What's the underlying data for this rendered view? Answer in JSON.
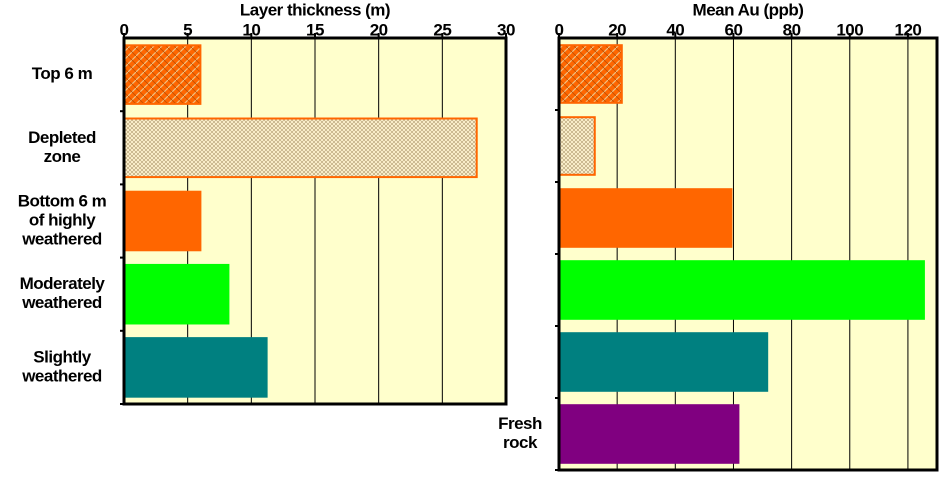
{
  "chart_data": [
    {
      "type": "barh",
      "title": "Layer thickness (m)",
      "categories": [
        [
          "Top 6 m"
        ],
        [
          "Depleted",
          "zone"
        ],
        [
          "Bottom 6 m",
          "of highly",
          "weathered"
        ],
        [
          "Moderately",
          "weathered"
        ],
        [
          "Slightly",
          "weathered"
        ]
      ],
      "values": [
        6,
        27.7,
        6,
        8.2,
        11.2
      ],
      "colors": [
        "#ff6600",
        "#ff6600",
        "#ff6600",
        "#00ff00",
        "#008080"
      ],
      "patterns": [
        "brick",
        "mesh",
        null,
        null,
        null
      ],
      "xlim": [
        0,
        30
      ],
      "xticks": [
        0,
        5,
        10,
        15,
        20,
        25,
        30
      ],
      "grid": true
    },
    {
      "type": "barh",
      "title": "Mean Au (ppb)",
      "categories": [
        null,
        null,
        null,
        null,
        null,
        [
          "Fresh",
          "rock"
        ]
      ],
      "values": [
        21.6,
        12.3,
        59.3,
        125.5,
        71.6,
        61.7
      ],
      "colors": [
        "#ff6600",
        "#ff6600",
        "#ff6600",
        "#00ff00",
        "#008080",
        "#800080"
      ],
      "patterns": [
        "brick",
        "mesh",
        null,
        null,
        null,
        null
      ],
      "xlim": [
        0,
        130
      ],
      "xticks": [
        0,
        20,
        40,
        60,
        80,
        100,
        120
      ],
      "grid": true
    }
  ]
}
